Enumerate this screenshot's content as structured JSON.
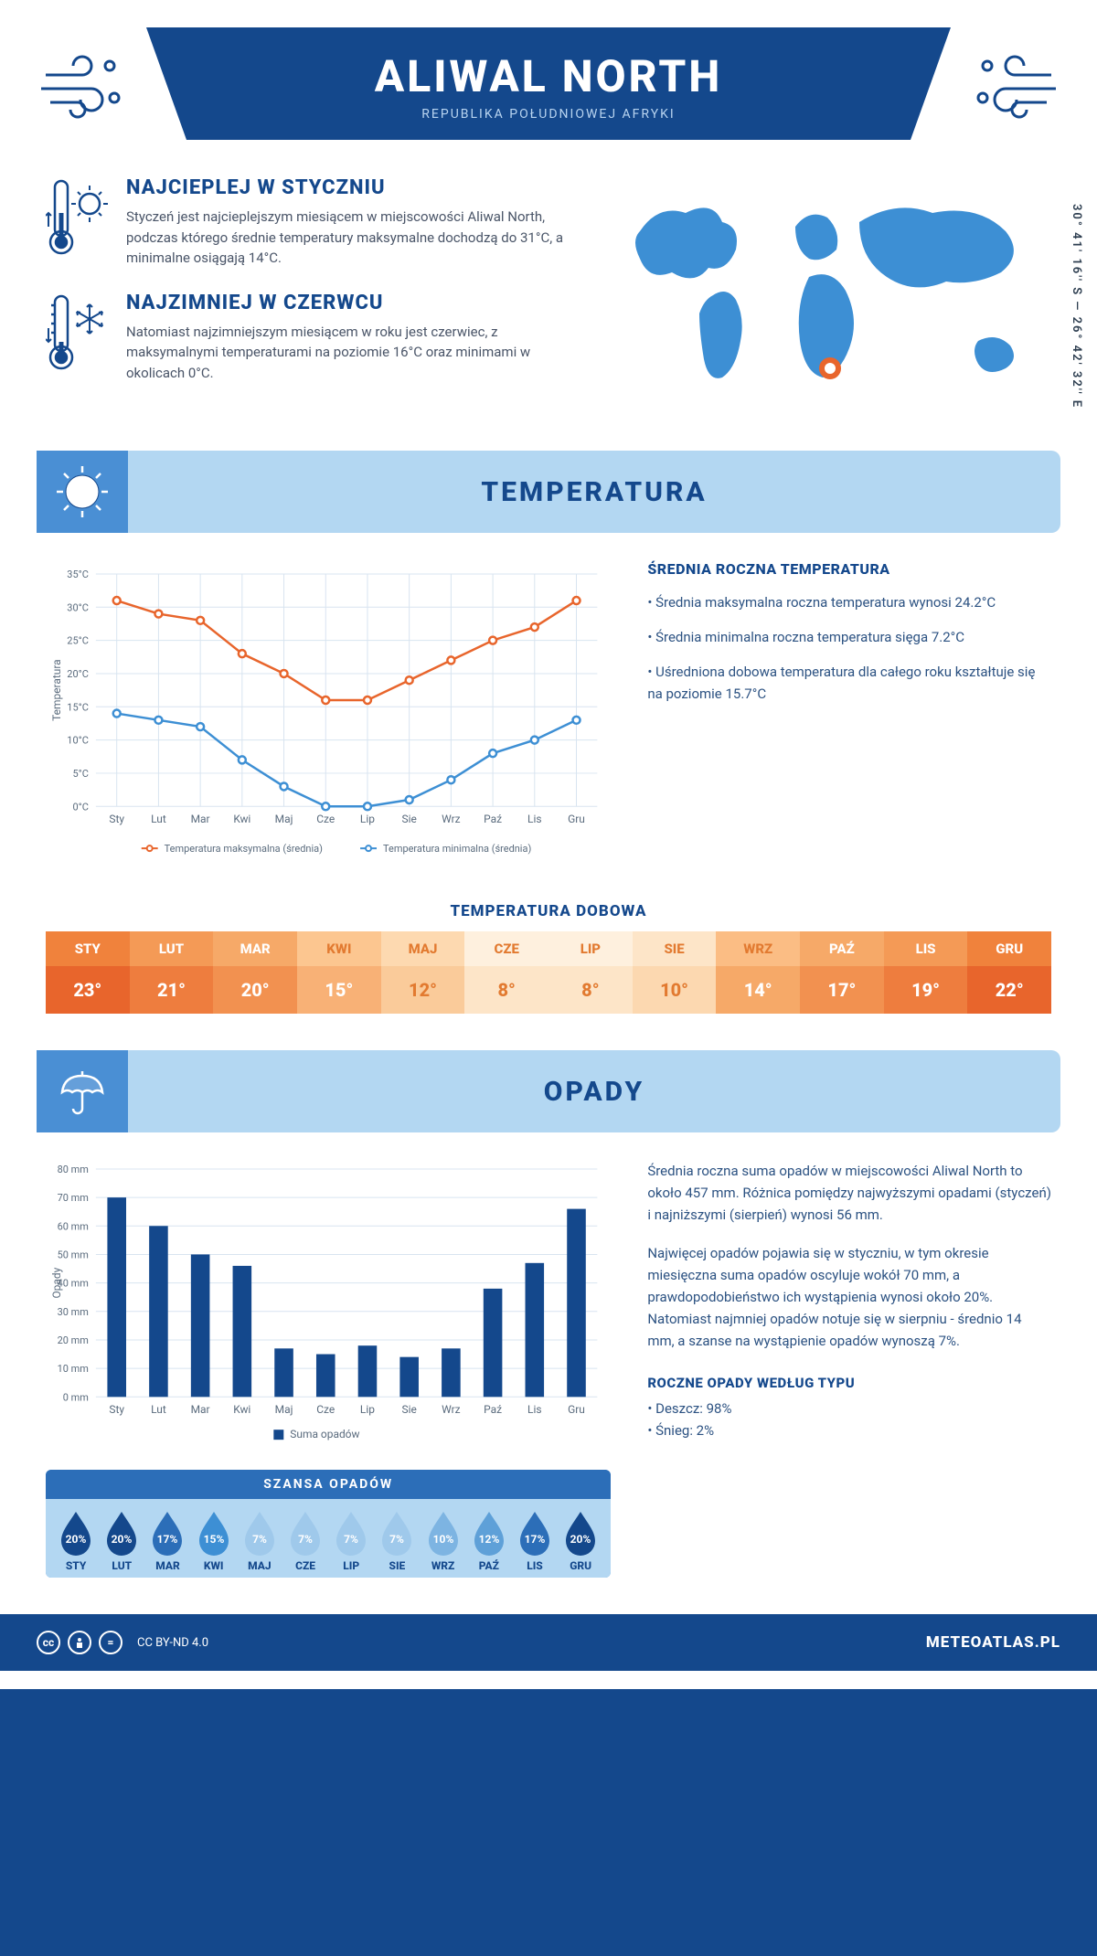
{
  "header": {
    "title": "ALIWAL NORTH",
    "subtitle": "REPUBLIKA POŁUDNIOWEJ AFRYKI"
  },
  "coords": "30° 41' 16'' S — 26° 42' 32'' E",
  "warm": {
    "title": "NAJCIEPLEJ W STYCZNIU",
    "text": "Styczeń jest najcieplejszym miesiącem w miejscowości Aliwal North, podczas którego średnie temperatury maksymalne dochodzą do 31°C, a minimalne osiągają 14°C."
  },
  "cold": {
    "title": "NAJZIMNIEJ W CZERWCU",
    "text": "Natomiast najzimniejszym miesiącem w roku jest czerwiec, z maksymalnymi temperaturami na poziomie 16°C oraz minimami w okolicach 0°C."
  },
  "temp_section": "TEMPERATURA",
  "temp_chart": {
    "ylabel": "Temperatura",
    "months": [
      "Sty",
      "Lut",
      "Mar",
      "Kwi",
      "Maj",
      "Cze",
      "Lip",
      "Sie",
      "Wrz",
      "Paź",
      "Lis",
      "Gru"
    ],
    "max": [
      31,
      29,
      28,
      23,
      20,
      16,
      16,
      19,
      22,
      25,
      27,
      31
    ],
    "min": [
      14,
      13,
      12,
      7,
      3,
      0,
      0,
      1,
      4,
      8,
      10,
      13
    ],
    "max_color": "#e8652c",
    "min_color": "#3d8fd4",
    "ylim": [
      0,
      35
    ],
    "ytick_step": 5,
    "legend_max": "Temperatura maksymalna (średnia)",
    "legend_min": "Temperatura minimalna (średnia)",
    "grid_color": "#d8e4f0",
    "background": "#ffffff"
  },
  "avg_heading": "ŚREDNIA ROCZNA TEMPERATURA",
  "avg_bullets": [
    "• Średnia maksymalna roczna temperatura wynosi 24.2°C",
    "• Średnia minimalna roczna temperatura sięga 7.2°C",
    "• Uśredniona dobowa temperatura dla całego roku kształtuje się na poziomie 15.7°C"
  ],
  "daily_title": "TEMPERATURA DOBOWA",
  "daily_table": {
    "months": [
      "STY",
      "LUT",
      "MAR",
      "KWI",
      "MAJ",
      "CZE",
      "LIP",
      "SIE",
      "WRZ",
      "PAŹ",
      "LIS",
      "GRU"
    ],
    "values": [
      "23°",
      "21°",
      "20°",
      "15°",
      "12°",
      "8°",
      "8°",
      "10°",
      "14°",
      "17°",
      "19°",
      "22°"
    ],
    "head_colors": [
      "#f0823c",
      "#f49a56",
      "#f6a968",
      "#fcc690",
      "#fdd9b0",
      "#fef0de",
      "#fef0de",
      "#fde5c8",
      "#fbbd84",
      "#f6a968",
      "#f49a56",
      "#f0823c"
    ],
    "val_colors": [
      "#e8652c",
      "#ee7d3e",
      "#f29150",
      "#f8b176",
      "#facb9a",
      "#fde5c8",
      "#fde5c8",
      "#fcd8b0",
      "#f6a968",
      "#f29150",
      "#ee7d3e",
      "#e8652c"
    ],
    "head_text": [
      "#fff",
      "#fff",
      "#fff",
      "#e27a30",
      "#e27a30",
      "#e27a30",
      "#e27a30",
      "#e27a30",
      "#e27a30",
      "#fff",
      "#fff",
      "#fff"
    ],
    "val_text": [
      "#fff",
      "#fff",
      "#fff",
      "#fff",
      "#e27a30",
      "#e27a30",
      "#e27a30",
      "#e27a30",
      "#fff",
      "#fff",
      "#fff",
      "#fff"
    ]
  },
  "precip_section": "OPADY",
  "precip_chart": {
    "ylabel": "Opady",
    "months": [
      "Sty",
      "Lut",
      "Mar",
      "Kwi",
      "Maj",
      "Cze",
      "Lip",
      "Sie",
      "Wrz",
      "Paź",
      "Lis",
      "Gru"
    ],
    "values": [
      70,
      60,
      50,
      46,
      17,
      15,
      18,
      14,
      17,
      38,
      47,
      66
    ],
    "ylim": [
      0,
      80
    ],
    "ytick_step": 10,
    "bar_color": "#14488c",
    "grid_color": "#d8e4f0",
    "legend": "Suma opadów"
  },
  "precip_para1": "Średnia roczna suma opadów w miejscowości Aliwal North to około 457 mm. Różnica pomiędzy najwyższymi opadami (styczeń) i najniższymi (sierpień) wynosi 56 mm.",
  "precip_para2": "Najwięcej opadów pojawia się w styczniu, w tym okresie miesięczna suma opadów oscyluje wokół 70 mm, a prawdopodobieństwo ich wystąpienia wynosi około 20%. Natomiast najmniej opadów notuje się w sierpniu - średnio 14 mm, a szanse na wystąpienie opadów wynoszą 7%.",
  "chance_title": "SZANSA OPADÓW",
  "chance": {
    "months": [
      "STY",
      "LUT",
      "MAR",
      "KWI",
      "MAJ",
      "CZE",
      "LIP",
      "SIE",
      "WRZ",
      "PAŹ",
      "LIS",
      "GRU"
    ],
    "values": [
      "20%",
      "20%",
      "17%",
      "15%",
      "7%",
      "7%",
      "7%",
      "7%",
      "10%",
      "12%",
      "17%",
      "20%"
    ],
    "drop_fills": [
      "#14488c",
      "#14488c",
      "#2c6eb8",
      "#3d8fd4",
      "#9fc9eb",
      "#9fc9eb",
      "#9fc9eb",
      "#9fc9eb",
      "#7db4e2",
      "#5ea0d8",
      "#2c6eb8",
      "#14488c"
    ]
  },
  "yearly_type_heading": "ROCZNE OPADY WEDŁUG TYPU",
  "yearly_type_items": [
    "• Deszcz: 98%",
    "• Śnieg: 2%"
  ],
  "footer": {
    "license": "CC BY-ND 4.0",
    "brand": "METEOATLAS.PL"
  },
  "colors": {
    "primary": "#14488c",
    "band": "#b3d7f2",
    "band_icon": "#4a8fd4"
  }
}
